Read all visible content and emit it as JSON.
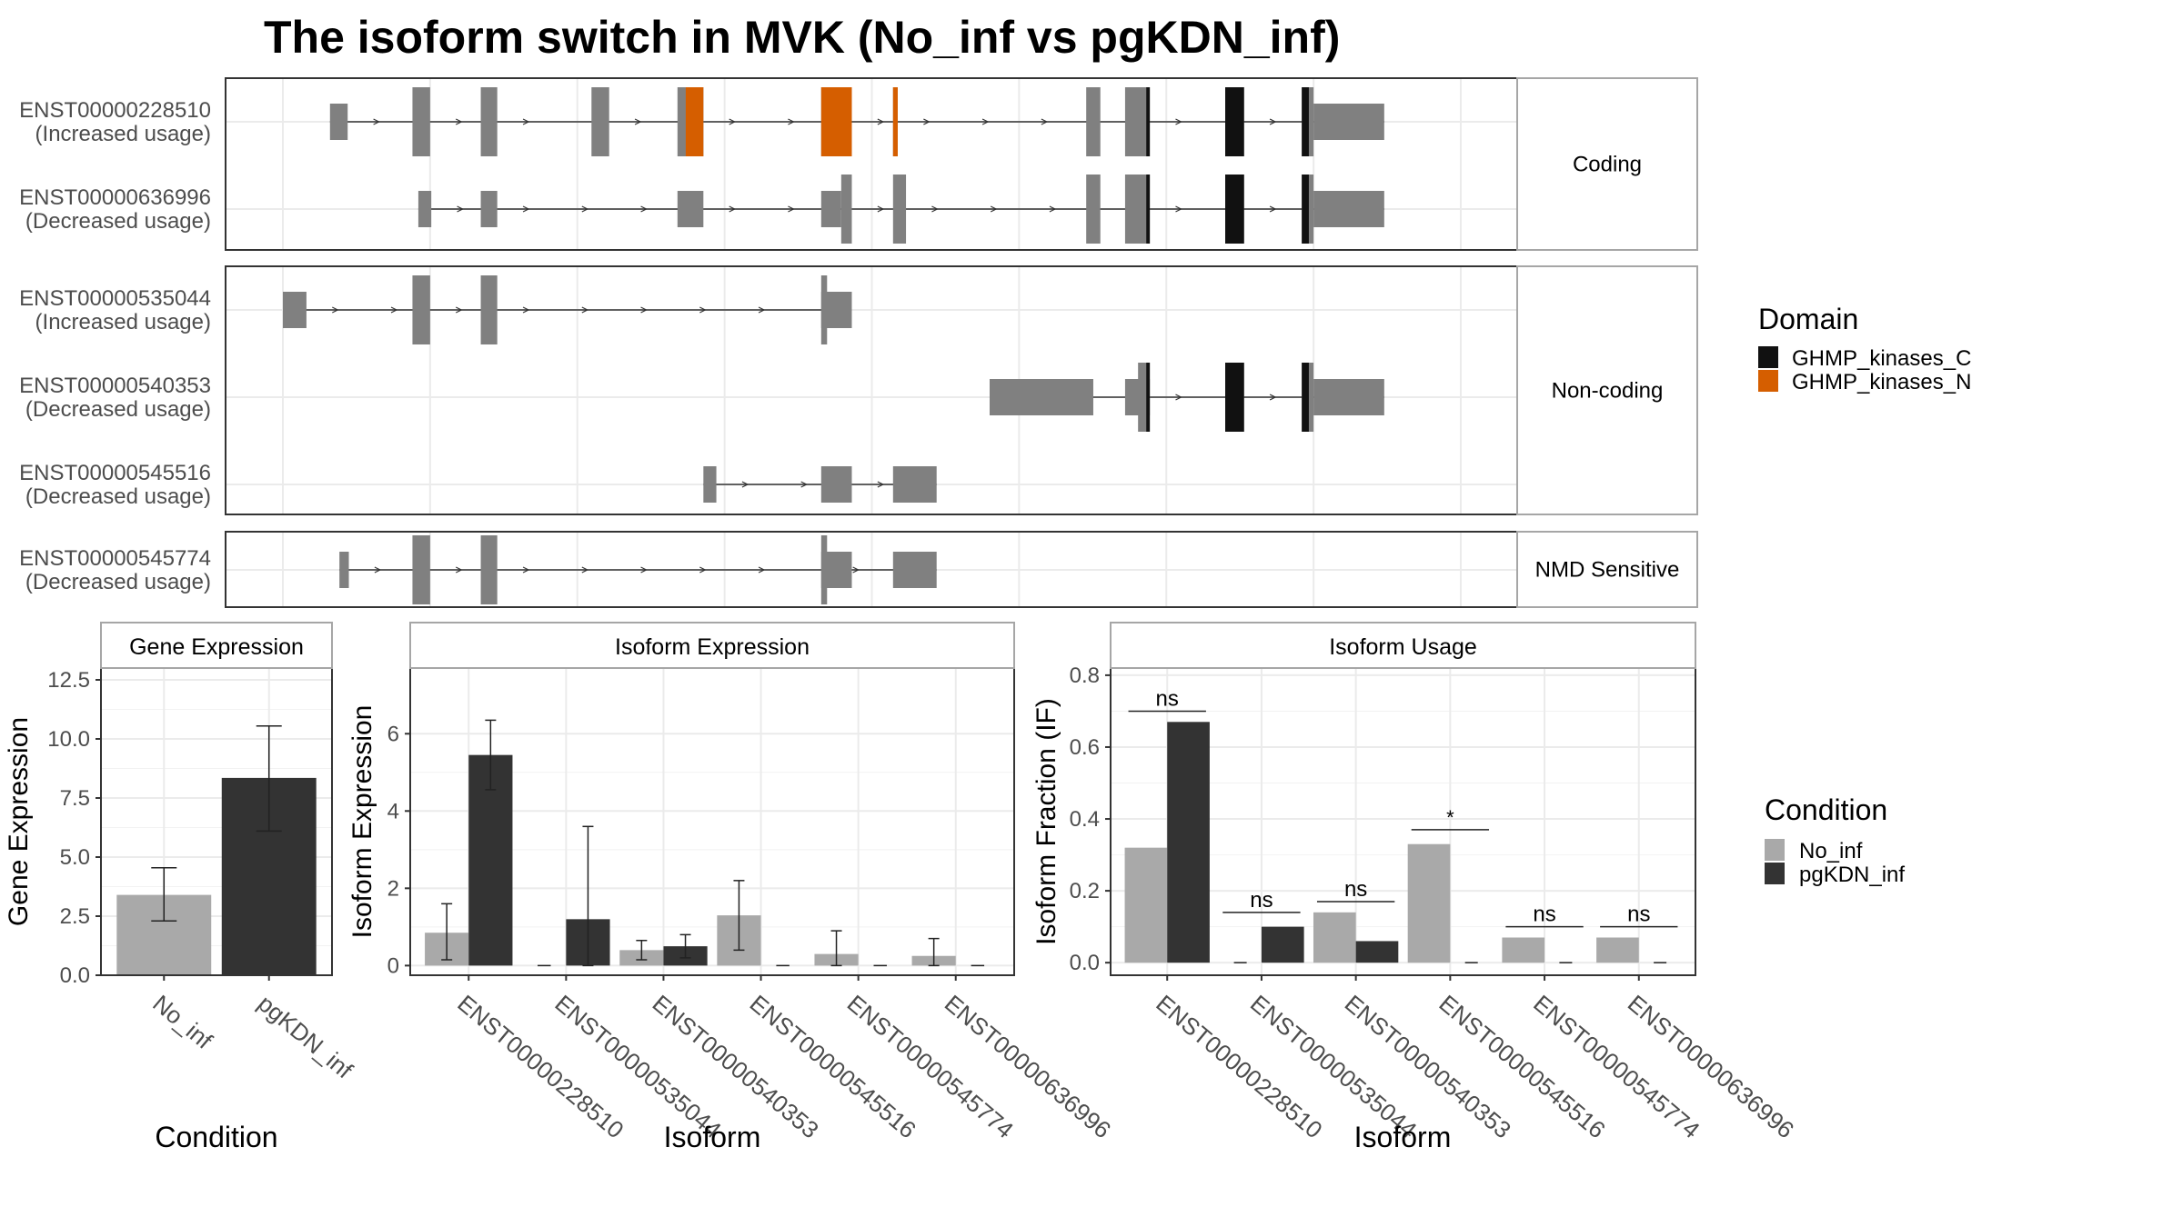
{
  "colors": {
    "exon": "#808080",
    "domain_c": "#111111",
    "domain_n": "#D55E00",
    "no_inf": "#A9A9A9",
    "pgkdn_inf": "#333333",
    "grid": "#EBEBEB",
    "panel_border": "#333333",
    "strip_border": "#A6A6A6"
  },
  "title": "The isoform switch in MVK (No_inf vs pgKDN_inf)",
  "structure": {
    "genomic_range": [
      0,
      1000
    ],
    "groups": [
      {
        "label": "Coding",
        "isoforms": [
          {
            "id": "ENST00000228510",
            "usage": "(Increased usage)",
            "exons": [
              [
                40,
                55,
                "thin"
              ],
              [
                110,
                125,
                "thick"
              ],
              [
                168,
                182,
                "thick"
              ],
              [
                262,
                277,
                "thick"
              ],
              [
                335,
                357,
                "thick"
              ],
              [
                457,
                483,
                "thick"
              ],
              [
                518,
                522,
                "thick"
              ],
              [
                682,
                694,
                "thick"
              ],
              [
                715,
                736,
                "thick"
              ],
              [
                800,
                816,
                "thick"
              ],
              [
                865,
                875,
                "thick"
              ],
              [
                875,
                935,
                "thin"
              ]
            ],
            "domains": [
              [
                342,
                357,
                "N"
              ],
              [
                457,
                483,
                "N"
              ],
              [
                518,
                522,
                "N"
              ],
              [
                733,
                736,
                "C"
              ],
              [
                800,
                816,
                "C"
              ],
              [
                865,
                871,
                "C"
              ]
            ]
          },
          {
            "id": "ENST00000636996",
            "usage": "(Decreased usage)",
            "exons": [
              [
                115,
                126,
                "thin"
              ],
              [
                168,
                182,
                "thin"
              ],
              [
                335,
                357,
                "thin"
              ],
              [
                457,
                474,
                "thin"
              ],
              [
                474,
                483,
                "thick"
              ],
              [
                518,
                529,
                "thick"
              ],
              [
                682,
                694,
                "thick"
              ],
              [
                715,
                736,
                "thick"
              ],
              [
                800,
                816,
                "thick"
              ],
              [
                865,
                875,
                "thick"
              ],
              [
                875,
                935,
                "thin"
              ]
            ],
            "domains": [
              [
                733,
                736,
                "C"
              ],
              [
                800,
                816,
                "C"
              ],
              [
                865,
                871,
                "C"
              ]
            ]
          }
        ]
      },
      {
        "label": "Non-coding",
        "isoforms": [
          {
            "id": "ENST00000535044",
            "usage": "(Increased usage)",
            "exons": [
              [
                0,
                20,
                "thin"
              ],
              [
                110,
                125,
                "thick"
              ],
              [
                168,
                182,
                "thick"
              ],
              [
                457,
                483,
                "thin"
              ],
              [
                457,
                462,
                "thick"
              ]
            ],
            "domains": []
          },
          {
            "id": "ENST00000540353",
            "usage": "(Decreased usage)",
            "exons": [
              [
                600,
                688,
                "thin"
              ],
              [
                715,
                736,
                "thin"
              ],
              [
                726,
                736,
                "thick"
              ],
              [
                800,
                816,
                "thick"
              ],
              [
                865,
                875,
                "thick"
              ],
              [
                875,
                935,
                "thin"
              ]
            ],
            "domains": [
              [
                733,
                736,
                "C"
              ],
              [
                800,
                816,
                "C"
              ],
              [
                865,
                871,
                "C"
              ]
            ]
          },
          {
            "id": "ENST00000545516",
            "usage": "(Decreased usage)",
            "exons": [
              [
                357,
                368,
                "thin"
              ],
              [
                457,
                483,
                "thin"
              ],
              [
                518,
                555,
                "thin"
              ]
            ],
            "domains": []
          }
        ]
      },
      {
        "label": "NMD Sensitive",
        "isoforms": [
          {
            "id": "ENST00000545774",
            "usage": "(Decreased usage)",
            "exons": [
              [
                48,
                56,
                "thin"
              ],
              [
                110,
                125,
                "thick"
              ],
              [
                168,
                182,
                "thick"
              ],
              [
                457,
                483,
                "thin"
              ],
              [
                457,
                462,
                "thick"
              ],
              [
                518,
                555,
                "thin"
              ]
            ],
            "domains": []
          }
        ]
      }
    ],
    "legend": {
      "title": "Domain",
      "items": [
        {
          "label": "GHMP_kinases_C",
          "key": "domain_c"
        },
        {
          "label": "GHMP_kinases_N",
          "key": "domain_n"
        }
      ]
    }
  },
  "chart_data": [
    {
      "type": "bar",
      "strip": "Gene Expression",
      "xlabel": "Condition",
      "ylabel": "Gene Expression",
      "categories": [
        "No_inf",
        "pgKDN_inf"
      ],
      "values": [
        3.4,
        8.35
      ],
      "errors": [
        [
          2.3,
          4.55
        ],
        [
          6.1,
          10.55
        ]
      ],
      "ylim": [
        0,
        13
      ],
      "yticks": [
        "0.0",
        "2.5",
        "5.0",
        "7.5",
        "10.0",
        "12.5"
      ],
      "ytick_values": [
        0,
        2.5,
        5,
        7.5,
        10,
        12.5
      ]
    },
    {
      "type": "bar",
      "strip": "Isoform Expression",
      "xlabel": "Isoform",
      "ylabel": "Isoform Expression",
      "categories": [
        "ENST00000228510",
        "ENST00000535044",
        "ENST00000540353",
        "ENST00000545516",
        "ENST00000545774",
        "ENST00000636996"
      ],
      "series": [
        {
          "name": "No_inf",
          "values": [
            0.85,
            0.0,
            0.4,
            1.3,
            0.3,
            0.25
          ],
          "errors": [
            [
              0.15,
              1.6
            ],
            [
              0,
              0
            ],
            [
              0.15,
              0.65
            ],
            [
              0.4,
              2.2
            ],
            [
              0.0,
              0.9
            ],
            [
              0.0,
              0.7
            ]
          ]
        },
        {
          "name": "pgKDN_inf",
          "values": [
            5.45,
            1.2,
            0.5,
            0.0,
            0.0,
            0.0
          ],
          "errors": [
            [
              4.55,
              6.35
            ],
            [
              0.0,
              3.6
            ],
            [
              0.2,
              0.8
            ],
            [
              0,
              0
            ],
            [
              0,
              0
            ],
            [
              0,
              0
            ]
          ]
        }
      ],
      "ylim": [
        -0.25,
        7.7
      ],
      "yticks": [
        "0",
        "2",
        "4",
        "6"
      ],
      "ytick_values": [
        0,
        2,
        4,
        6
      ]
    },
    {
      "type": "bar",
      "strip": "Isoform Usage",
      "xlabel": "Isoform",
      "ylabel": "Isoform Fraction (IF)",
      "categories": [
        "ENST00000228510",
        "ENST00000535044",
        "ENST00000540353",
        "ENST00000545516",
        "ENST00000545774",
        "ENST00000636996"
      ],
      "series": [
        {
          "name": "No_inf",
          "values": [
            0.32,
            0.0,
            0.14,
            0.33,
            0.07,
            0.07
          ]
        },
        {
          "name": "pgKDN_inf",
          "values": [
            0.67,
            0.1,
            0.06,
            0.0,
            0.0,
            0.0
          ]
        }
      ],
      "significance": [
        "ns",
        "ns",
        "ns",
        "*",
        "ns",
        "ns"
      ],
      "sig_heights": [
        0.7,
        0.14,
        0.17,
        0.37,
        0.1,
        0.1
      ],
      "ylim": [
        -0.035,
        0.82
      ],
      "yticks": [
        "0.0",
        "0.2",
        "0.4",
        "0.6",
        "0.8"
      ],
      "ytick_values": [
        0,
        0.2,
        0.4,
        0.6,
        0.8
      ],
      "legend": {
        "title": "Condition",
        "items": [
          {
            "label": "No_inf",
            "key": "no_inf"
          },
          {
            "label": "pgKDN_inf",
            "key": "pgkdn_inf"
          }
        ]
      }
    }
  ]
}
